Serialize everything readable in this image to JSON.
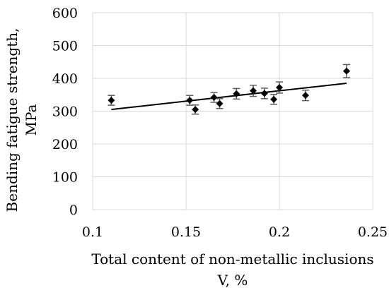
{
  "chart_data": {
    "type": "scatter",
    "title": "",
    "xlabel_lines": [
      "Total content of non-metallic inclusions",
      "V, %"
    ],
    "ylabel_lines": [
      "Bending fatigue strength,",
      "MPa"
    ],
    "xlim": [
      0.1,
      0.25
    ],
    "ylim": [
      0,
      600
    ],
    "x_ticks": [
      0.1,
      0.15,
      0.2,
      0.25
    ],
    "x_tick_labels": [
      "0.1",
      "0.15",
      "0.2",
      "0.25"
    ],
    "y_ticks": [
      0,
      100,
      200,
      300,
      400,
      500,
      600
    ],
    "y_tick_labels": [
      "0",
      "100",
      "200",
      "300",
      "400",
      "500",
      "600"
    ],
    "grid": true,
    "legend": "none",
    "series": [
      {
        "marker": "diamond",
        "color": "#000000",
        "points": [
          {
            "x": 0.11,
            "y": 333,
            "err": 15
          },
          {
            "x": 0.152,
            "y": 333,
            "err": 15
          },
          {
            "x": 0.155,
            "y": 305,
            "err": 14
          },
          {
            "x": 0.165,
            "y": 342,
            "err": 15
          },
          {
            "x": 0.168,
            "y": 323,
            "err": 15
          },
          {
            "x": 0.177,
            "y": 353,
            "err": 16
          },
          {
            "x": 0.186,
            "y": 362,
            "err": 17
          },
          {
            "x": 0.192,
            "y": 354,
            "err": 16
          },
          {
            "x": 0.197,
            "y": 336,
            "err": 15
          },
          {
            "x": 0.2,
            "y": 372,
            "err": 17
          },
          {
            "x": 0.214,
            "y": 348,
            "err": 16
          },
          {
            "x": 0.236,
            "y": 422,
            "err": 20
          }
        ]
      }
    ],
    "trendline": {
      "type": "linear",
      "x": [
        0.11,
        0.236
      ],
      "y": [
        305,
        385
      ]
    }
  }
}
